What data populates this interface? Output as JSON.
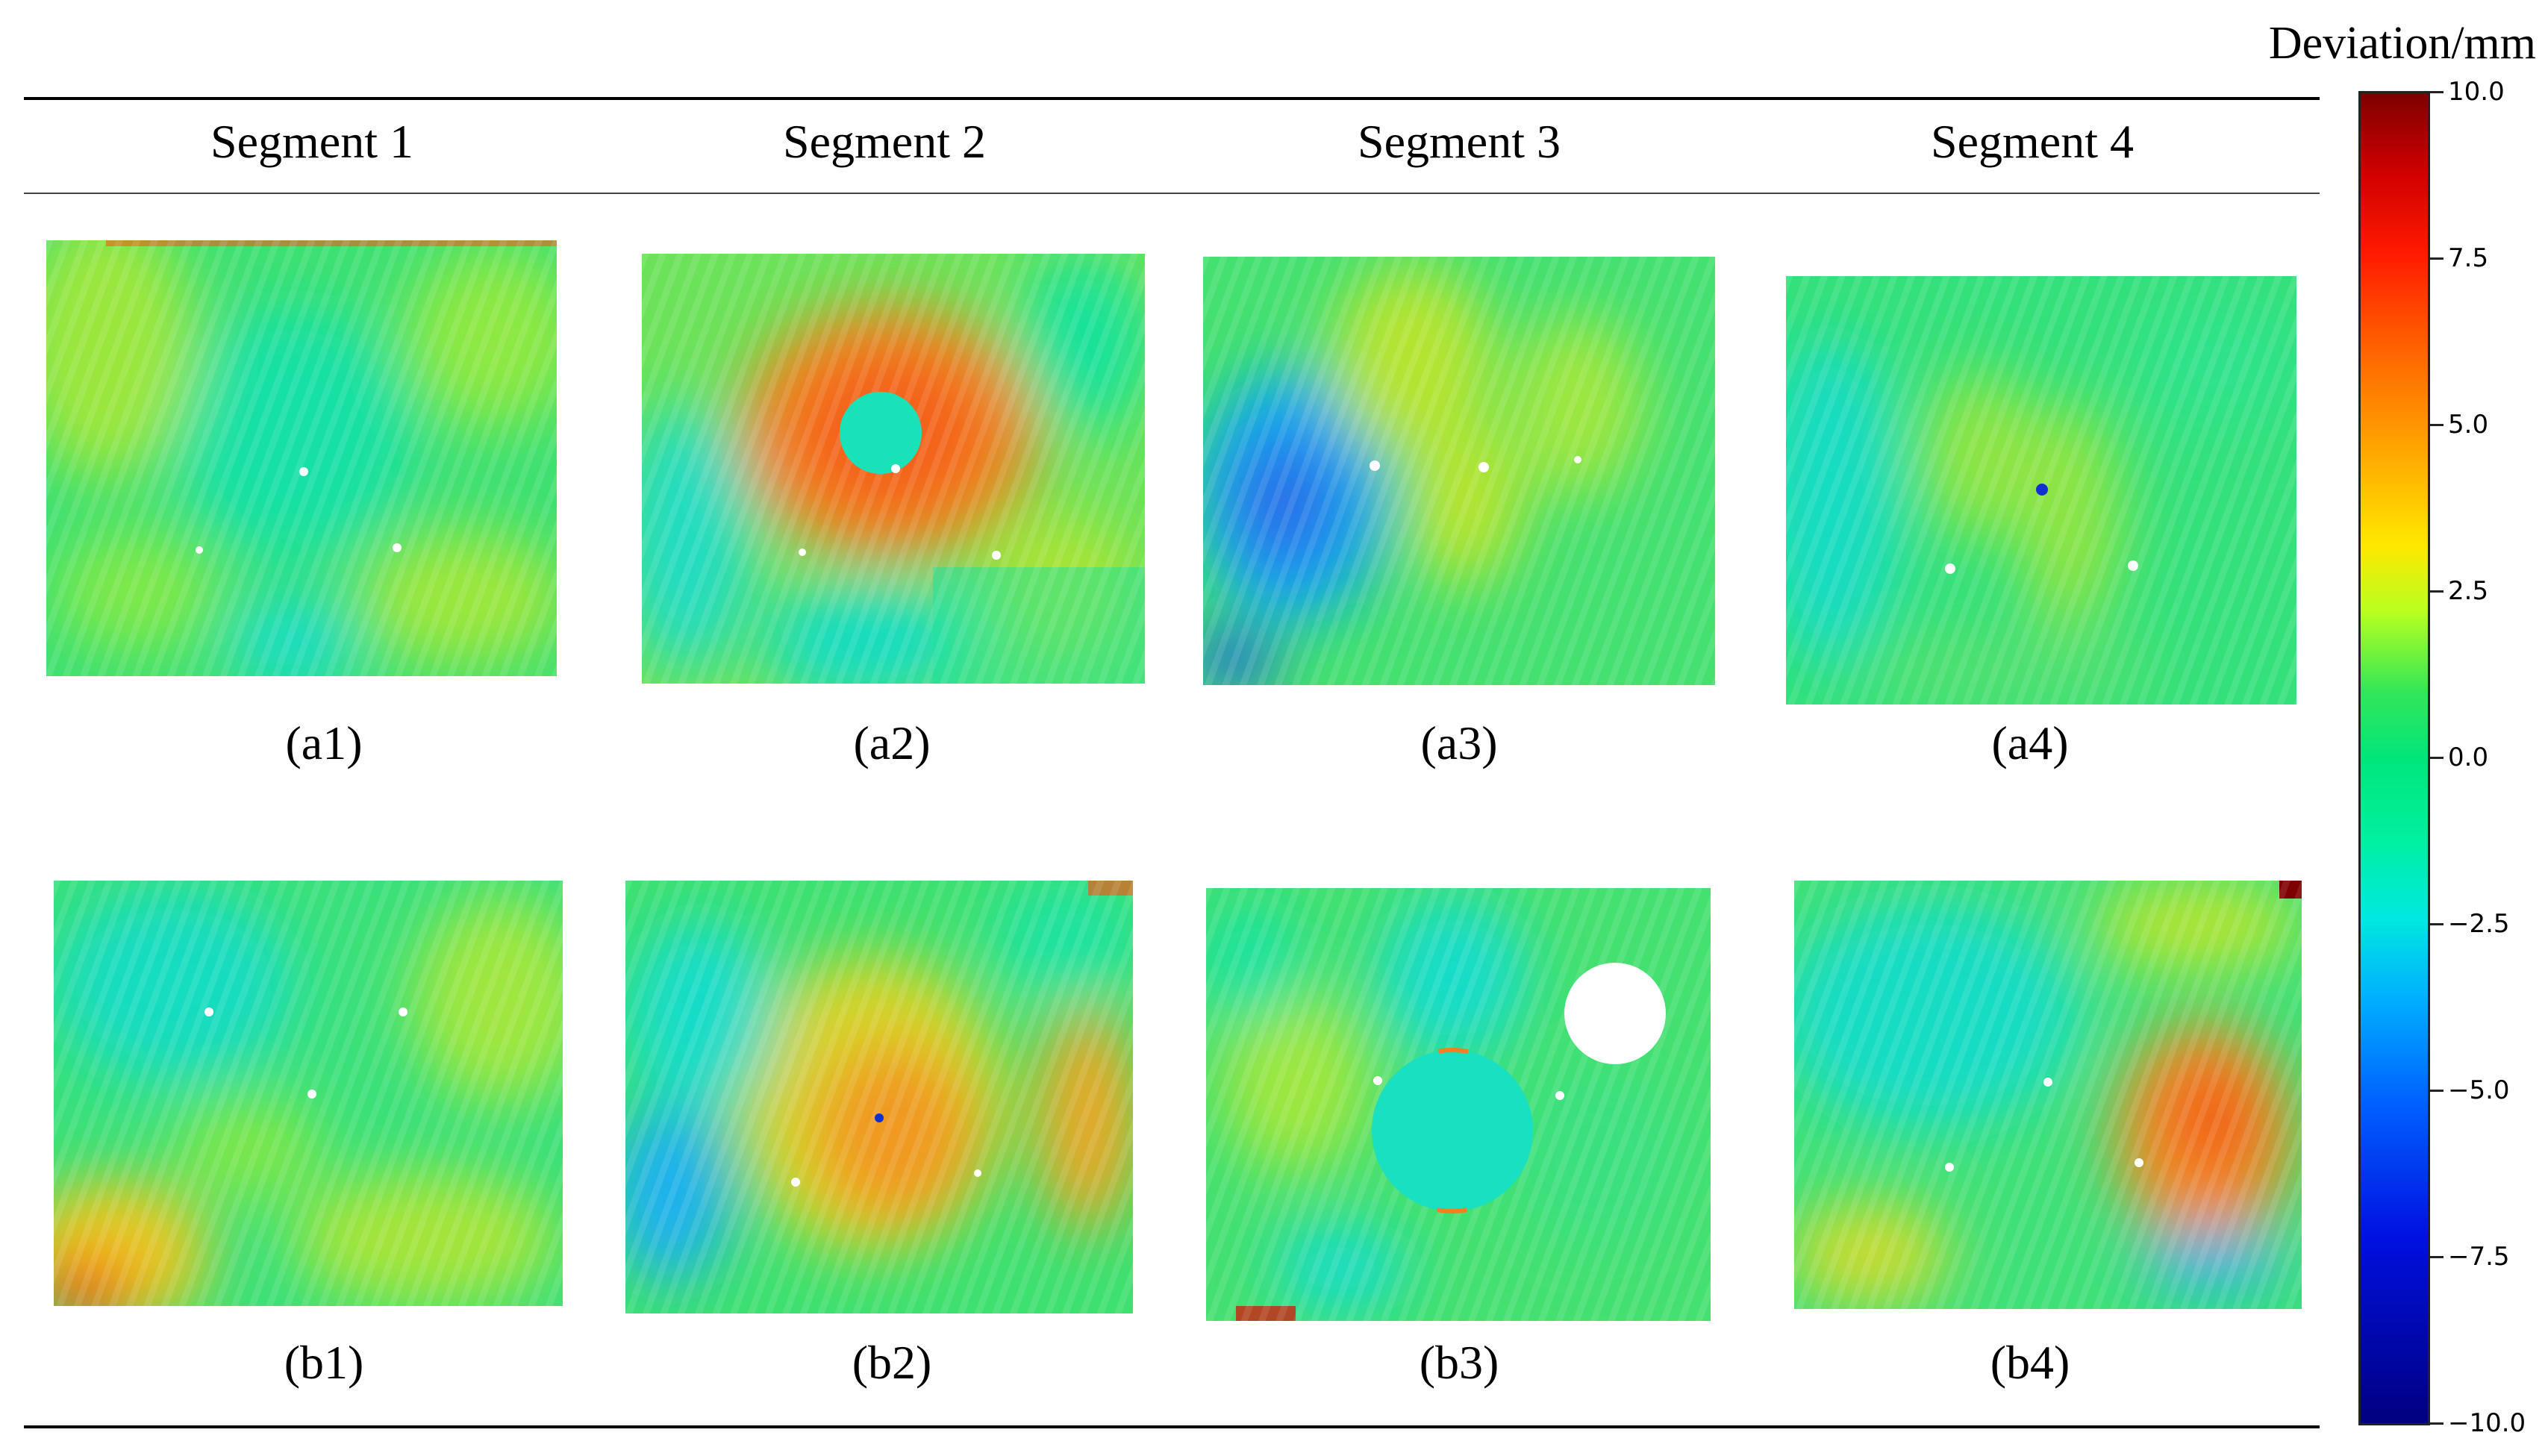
{
  "segments": [
    "Segment 1",
    "Segment 2",
    "Segment 3",
    "Segment 4"
  ],
  "panels": [
    "(a1)",
    "(a2)",
    "(a3)",
    "(a4)",
    "(b1)",
    "(b2)",
    "(b3)",
    "(b4)"
  ],
  "colorbar": {
    "title": "Deviation/mm",
    "min": -10.0,
    "max": 10.0,
    "ticks": [
      "10.0",
      "7.5",
      "5.0",
      "2.5",
      "0.0",
      "−2.5",
      "−5.0",
      "−7.5",
      "−10.0"
    ],
    "colormap": "jet",
    "colors": {
      "high": "#7f0000",
      "mid": "#00e67a",
      "low": "#000080"
    }
  }
}
